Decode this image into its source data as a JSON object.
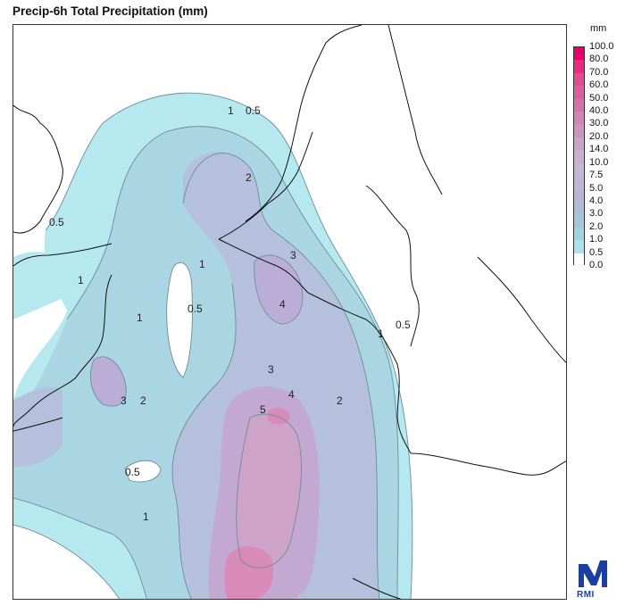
{
  "title": "Precip-6h Total Precipitation (mm)",
  "legend": {
    "unit": "mm",
    "levels": [
      "100.0",
      "80.0",
      "70.0",
      "60.0",
      "50.0",
      "40.0",
      "30.0",
      "20.0",
      "14.0",
      "10.0",
      "7.5",
      "5.0",
      "4.0",
      "3.0",
      "2.0",
      "1.0",
      "0.5",
      "0.0"
    ],
    "colors": [
      "#e8006a",
      "#ea2a7e",
      "#e44a90",
      "#dc5e9c",
      "#d672a8",
      "#d284b2",
      "#ce94bc",
      "#c9a4c6",
      "#c6b0cc",
      "#c2b8d2",
      "#beb8d4",
      "#b7b6d8",
      "#b0bcd8",
      "#a8c6da",
      "#9ed4e0",
      "#a8e4ea",
      "#ffffff"
    ]
  },
  "contour_labels": [
    {
      "text": "0.5"
    },
    {
      "text": "1"
    },
    {
      "text": "2"
    },
    {
      "text": "0.5"
    },
    {
      "text": "1"
    },
    {
      "text": "3"
    },
    {
      "text": "4"
    },
    {
      "text": "1"
    },
    {
      "text": "0.5"
    },
    {
      "text": "1"
    },
    {
      "text": "0.5"
    },
    {
      "text": "3"
    },
    {
      "text": "2"
    },
    {
      "text": "3"
    },
    {
      "text": "4"
    },
    {
      "text": "5"
    },
    {
      "text": "2"
    },
    {
      "text": "0.5"
    },
    {
      "text": "1"
    },
    {
      "text": "1"
    }
  ],
  "logo": {
    "text": "RMI",
    "color": "#1a3fa0"
  }
}
